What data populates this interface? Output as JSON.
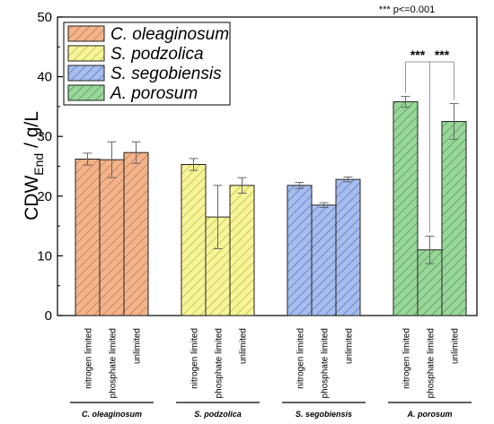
{
  "chart_data": {
    "type": "bar",
    "ylabel_main": "CDW",
    "ylabel_sub": "End",
    "ylabel_rest": " / g/L",
    "ylim": [
      0,
      50
    ],
    "yticks": [
      0,
      10,
      20,
      30,
      40,
      50
    ],
    "significance_note": "*** p<=0.001",
    "significance_marks": [
      {
        "group": 3,
        "from": 0,
        "to": 1,
        "label": "***"
      },
      {
        "group": 3,
        "from": 1,
        "to": 2,
        "label": "***"
      }
    ],
    "conditions": [
      "nitrogen limited",
      "phosphate limited",
      "unlimited"
    ],
    "legend_placement": "top-left",
    "groups": [
      {
        "name": "C. oleaginosum",
        "color": "#f2b48c",
        "stroke": "#c8713f",
        "values": [
          26.2,
          26.1,
          27.3
        ],
        "errors": [
          1.0,
          3.0,
          1.8
        ]
      },
      {
        "name": "S. podzolica",
        "color": "#f7f59a",
        "stroke": "#b8b336",
        "values": [
          25.3,
          16.5,
          21.8
        ],
        "errors": [
          1.0,
          5.3,
          1.3
        ]
      },
      {
        "name": "S. segobiensis",
        "color": "#a7bdec",
        "stroke": "#4d6fc4",
        "values": [
          21.8,
          18.5,
          22.8
        ],
        "errors": [
          0.5,
          0.4,
          0.4
        ]
      },
      {
        "name": "A. porosum",
        "color": "#9ad69a",
        "stroke": "#3f9a48",
        "values": [
          35.8,
          11.0,
          32.5
        ],
        "errors": [
          0.9,
          2.3,
          3.0
        ]
      }
    ]
  }
}
